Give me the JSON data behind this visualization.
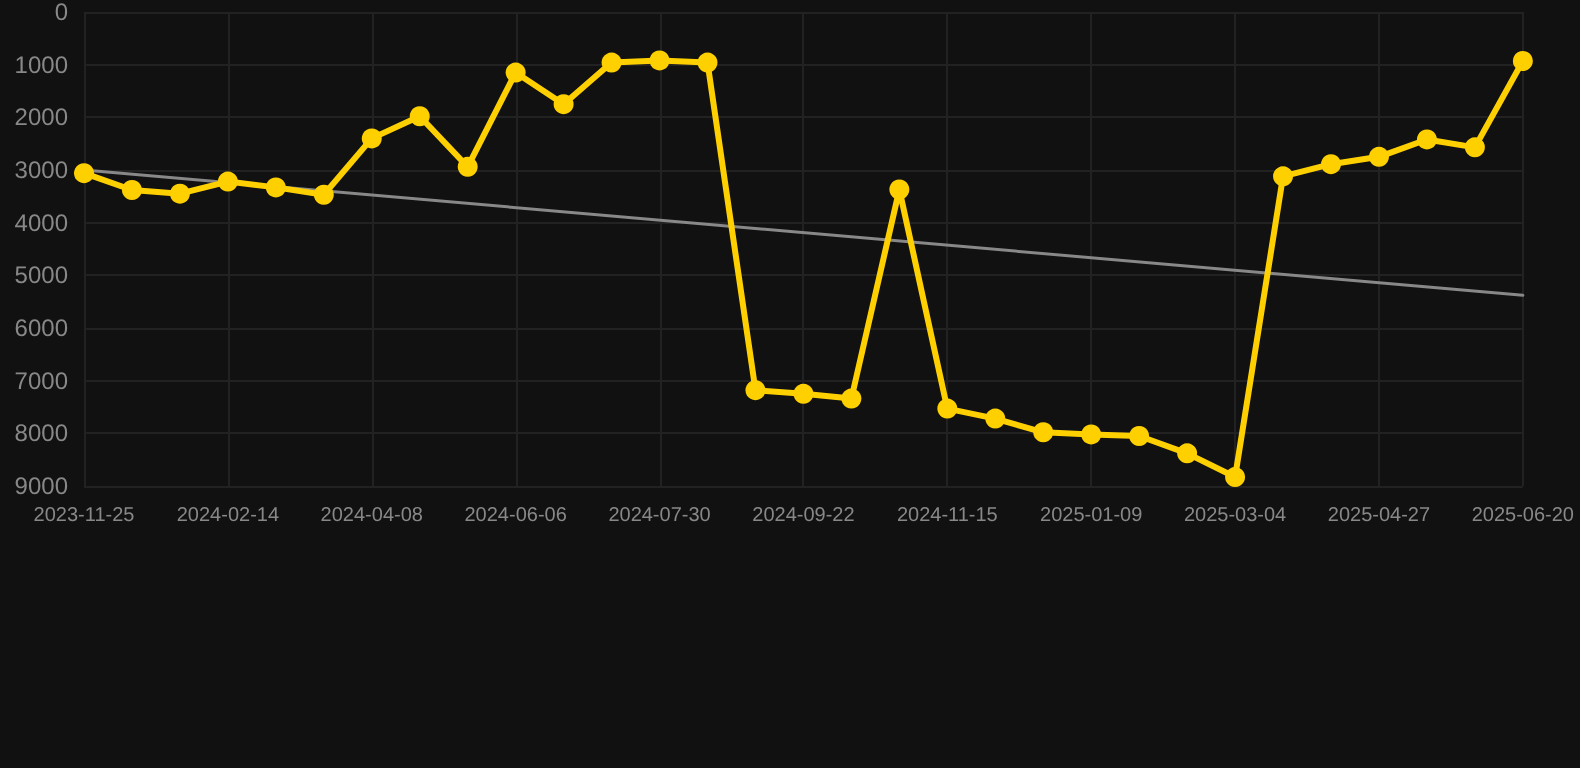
{
  "chart_data": {
    "type": "line",
    "categories": [
      "2023-11-25",
      null,
      null,
      "2024-02-14",
      null,
      null,
      "2024-04-08",
      null,
      null,
      "2024-06-06",
      null,
      null,
      "2024-07-30",
      null,
      null,
      "2024-09-22",
      null,
      null,
      "2024-11-15",
      null,
      null,
      "2025-01-09",
      null,
      null,
      "2025-03-04",
      null,
      null,
      "2025-04-27",
      null,
      null,
      "2025-06-20"
    ],
    "series": [
      {
        "color": "#ffd000",
        "marker": "circle",
        "values": [
          3060,
          3380,
          3450,
          3220,
          3330,
          3470,
          2400,
          1980,
          2940,
          1150,
          1750,
          960,
          920,
          960,
          7180,
          7250,
          7340,
          3370,
          7530,
          7720,
          7980,
          8020,
          8050,
          8380,
          8830,
          3120,
          2890,
          2750,
          2420,
          2570,
          930
        ]
      },
      {
        "type": "line",
        "color": "#888888",
        "marker": "none",
        "values": [
          3000,
          null,
          null,
          null,
          null,
          null,
          null,
          null,
          null,
          null,
          null,
          null,
          null,
          null,
          null,
          null,
          null,
          null,
          null,
          null,
          null,
          null,
          null,
          null,
          null,
          null,
          null,
          null,
          null,
          null,
          5380
        ]
      }
    ],
    "ylim": [
      9000,
      0
    ],
    "yticks": [
      0,
      1000,
      2000,
      3000,
      4000,
      5000,
      6000,
      7000,
      8000,
      9000
    ],
    "grid": true
  }
}
